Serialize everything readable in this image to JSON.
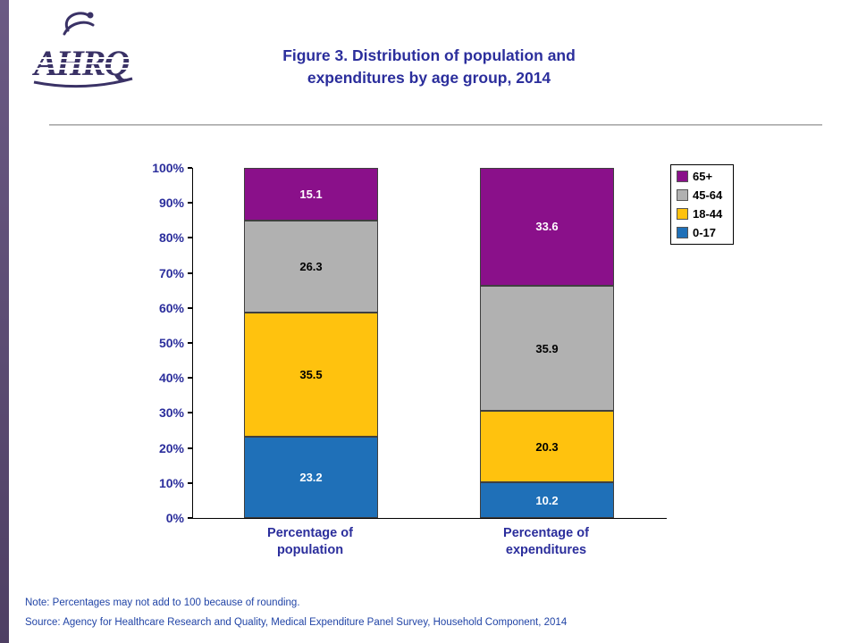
{
  "page": {
    "title_line1": "Figure 3. Distribution of population and",
    "title_line2": "expenditures by age group, 2014",
    "note": "Note: Percentages may not add to 100 because of rounding.",
    "source": "Source: Agency for Healthcare Research and Quality, Medical Expenditure Panel Survey,  Household Component, 2014",
    "logo_text": "AHRQ"
  },
  "chart_data": {
    "type": "bar",
    "stacked": true,
    "title": "Figure 3. Distribution of population and expenditures by age group, 2014",
    "xlabel": "",
    "ylabel": "",
    "ylim": [
      0,
      100
    ],
    "grid": false,
    "legend_position": "top-right",
    "categories": [
      [
        "Percentage of",
        "population"
      ],
      [
        "Percentage of",
        "expenditures"
      ]
    ],
    "series": [
      {
        "name": "0-17",
        "color": "#1f70b8",
        "label_color": "#ffffff",
        "values": [
          23.2,
          10.2
        ]
      },
      {
        "name": "18-44",
        "color": "#ffc20e",
        "label_color": "#000000",
        "values": [
          35.5,
          20.3
        ]
      },
      {
        "name": "45-64",
        "color": "#b1b1b1",
        "label_color": "#000000",
        "values": [
          26.3,
          35.9
        ]
      },
      {
        "name": "65+",
        "color": "#8a108a",
        "label_color": "#ffffff",
        "values": [
          15.1,
          33.6
        ]
      }
    ],
    "legend_order": [
      "65+",
      "45-64",
      "18-44",
      "0-17"
    ],
    "yticks": [
      "100%",
      "90%",
      "80%",
      "70%",
      "60%",
      "50%",
      "40%",
      "30%",
      "20%",
      "10%",
      "0%"
    ]
  }
}
